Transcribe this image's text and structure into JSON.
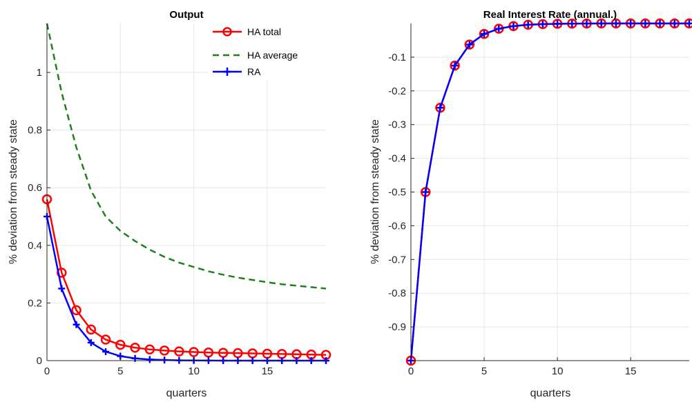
{
  "chart_data": [
    {
      "type": "line",
      "title": "Output",
      "xlabel": "quarters",
      "ylabel": "% deviation from steady state",
      "xlim": [
        0,
        19
      ],
      "ylim": [
        0,
        1.17
      ],
      "xticks": [
        0,
        5,
        10,
        15
      ],
      "yticks": [
        0,
        0.2,
        0.4,
        0.6,
        0.8,
        1
      ],
      "ytick_labels": [
        "0",
        "0.2",
        "0.4",
        "0.6",
        "0.8",
        "1"
      ],
      "grid": true,
      "legend": "top-right",
      "x": [
        0,
        1,
        2,
        3,
        4,
        5,
        6,
        7,
        8,
        9,
        10,
        11,
        12,
        13,
        14,
        15,
        16,
        17,
        18,
        19
      ],
      "series": [
        {
          "name": "HA total",
          "color": "#ff0000",
          "style": "solid",
          "marker": "circle",
          "values": [
            0.56,
            0.305,
            0.175,
            0.108,
            0.073,
            0.055,
            0.045,
            0.039,
            0.035,
            0.032,
            0.03,
            0.028,
            0.027,
            0.026,
            0.025,
            0.024,
            0.023,
            0.022,
            0.021,
            0.02
          ]
        },
        {
          "name": "HA average",
          "color": "#1f7f1f",
          "style": "dashed",
          "marker": "none",
          "values": [
            1.17,
            0.93,
            0.74,
            0.59,
            0.5,
            0.45,
            0.415,
            0.385,
            0.36,
            0.34,
            0.325,
            0.31,
            0.298,
            0.288,
            0.28,
            0.272,
            0.265,
            0.26,
            0.255,
            0.25
          ]
        },
        {
          "name": "RA",
          "color": "#0000ff",
          "style": "solid",
          "marker": "plus",
          "values": [
            0.5,
            0.25,
            0.125,
            0.0625,
            0.03125,
            0.0156,
            0.0078,
            0.0039,
            0.002,
            0.001,
            0.0005,
            0.0002,
            0.0001,
            0.0,
            0.0,
            0.0,
            0.0,
            0.0,
            0.0,
            0.0
          ]
        }
      ]
    },
    {
      "type": "line",
      "title": "Real Interest Rate (annual.)",
      "xlabel": "quarters",
      "ylabel": "% deviation from steady state",
      "xlim": [
        0,
        19
      ],
      "ylim": [
        -1.0,
        0.0
      ],
      "xticks": [
        0,
        5,
        10,
        15
      ],
      "yticks": [
        -0.9,
        -0.8,
        -0.7,
        -0.6,
        -0.5,
        -0.4,
        -0.3,
        -0.2,
        -0.1
      ],
      "ytick_labels": [
        "-0.9",
        "-0.8",
        "-0.7",
        "-0.6",
        "-0.5",
        "-0.4",
        "-0.3",
        "-0.2",
        "-0.1"
      ],
      "grid": true,
      "legend": "none",
      "x": [
        0,
        1,
        2,
        3,
        4,
        5,
        6,
        7,
        8,
        9,
        10,
        11,
        12,
        13,
        14,
        15,
        16,
        17,
        18,
        19
      ],
      "series": [
        {
          "name": "HA total",
          "color": "#ff0000",
          "style": "solid",
          "marker": "circle",
          "values": [
            -1.0,
            -0.5,
            -0.25,
            -0.125,
            -0.0625,
            -0.03125,
            -0.0156,
            -0.0078,
            -0.0039,
            -0.002,
            -0.001,
            -0.0005,
            -0.0002,
            -0.0001,
            0,
            0,
            0,
            0,
            0,
            0
          ]
        },
        {
          "name": "RA",
          "color": "#0000ff",
          "style": "solid",
          "marker": "plus",
          "values": [
            -1.0,
            -0.5,
            -0.25,
            -0.125,
            -0.0625,
            -0.03125,
            -0.0156,
            -0.0078,
            -0.0039,
            -0.002,
            -0.001,
            -0.0005,
            -0.0002,
            -0.0001,
            0,
            0,
            0,
            0,
            0,
            0
          ]
        }
      ]
    }
  ]
}
